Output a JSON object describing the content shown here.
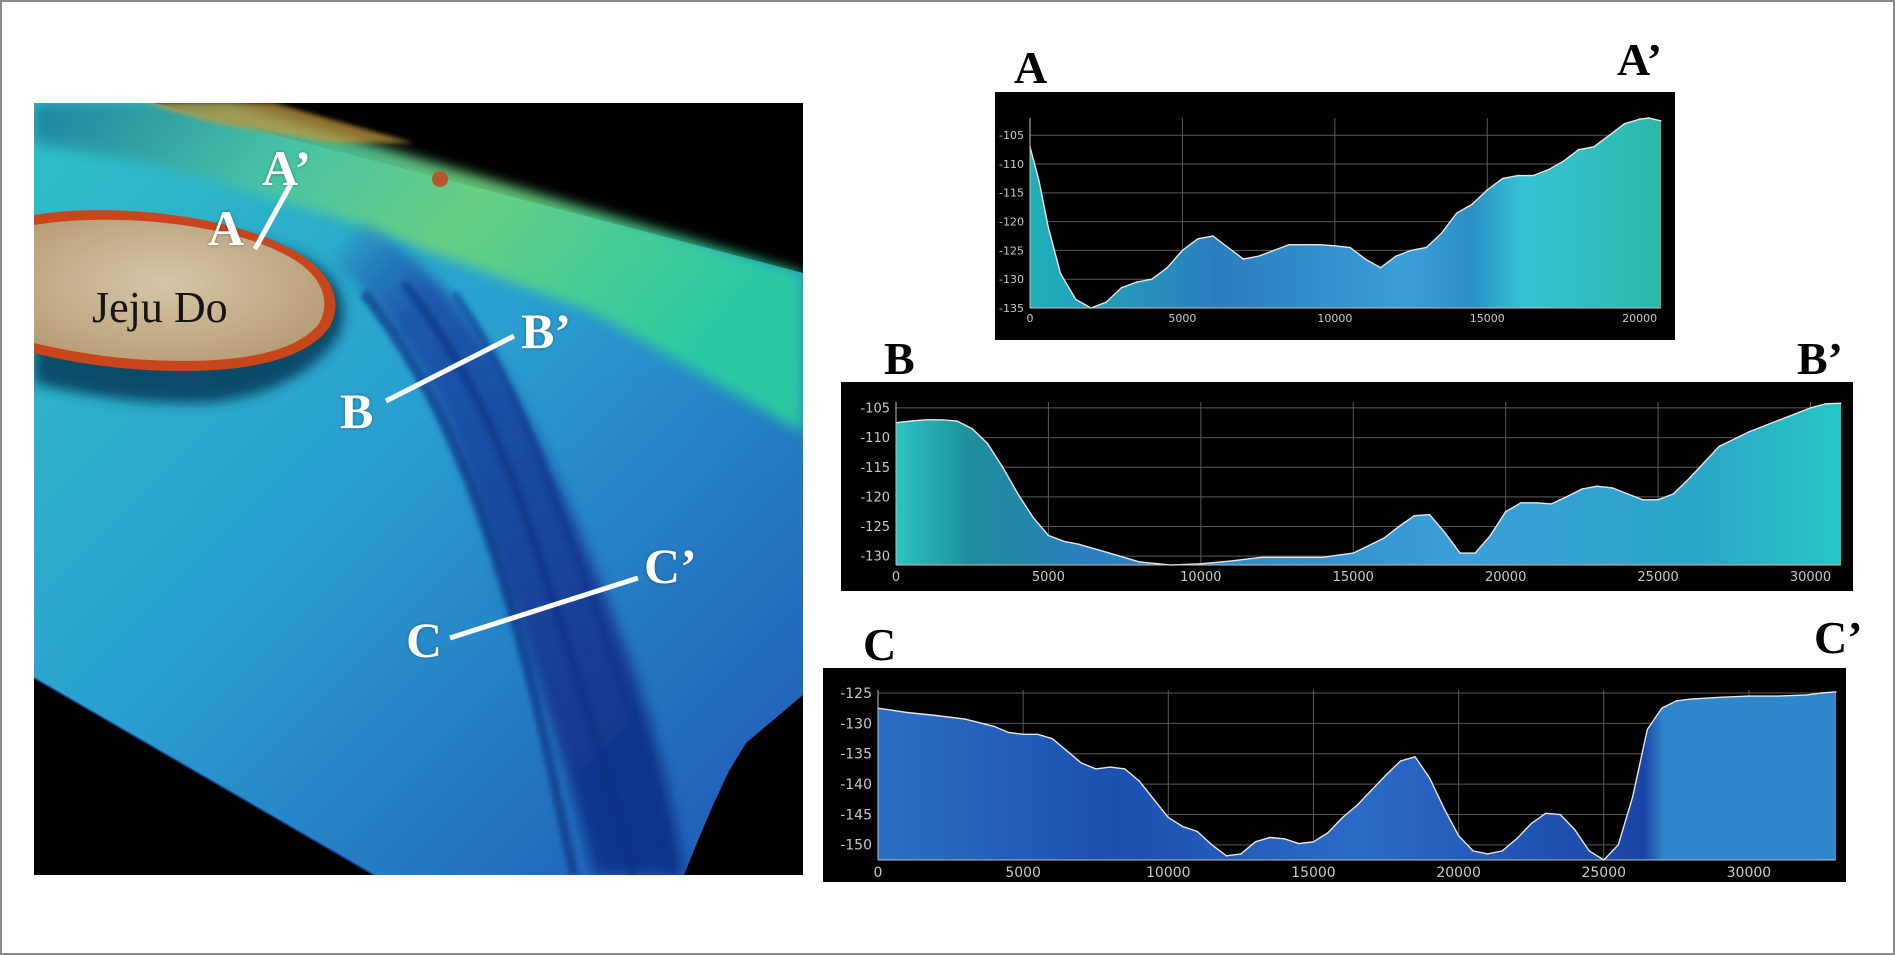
{
  "map": {
    "island_label": "Jeju Do",
    "colors": {
      "island": "#c9b493",
      "rim": "#d2521e",
      "shelf": "#2fc0c4",
      "trough": "#1e4fae",
      "deep": "#143a9a",
      "shallow_north": "#7bd25a",
      "background": "#000000"
    },
    "profile_lines": [
      {
        "name": "A",
        "start_label": "A",
        "end_label": "A’"
      },
      {
        "name": "B",
        "start_label": "B",
        "end_label": "B’"
      },
      {
        "name": "C",
        "start_label": "C",
        "end_label": "C’"
      }
    ]
  },
  "chart_data": [
    {
      "type": "area",
      "title_start": "A",
      "title_end": "A’",
      "xlabel": "",
      "ylabel": "",
      "xlim": [
        0,
        20700
      ],
      "ylim": [
        -135,
        -102
      ],
      "xticks": [
        0,
        5000,
        10000,
        15000,
        20000
      ],
      "yticks": [
        -105,
        -110,
        -115,
        -120,
        -125,
        -130,
        -135
      ],
      "fill_color": "#2a8fc4",
      "x": [
        0,
        300,
        600,
        1000,
        1500,
        2000,
        2500,
        3000,
        3500,
        4000,
        4500,
        5000,
        5500,
        6000,
        6500,
        7000,
        7500,
        8000,
        8500,
        9000,
        9500,
        10000,
        10500,
        11000,
        11500,
        12000,
        12500,
        13000,
        13500,
        14000,
        14500,
        15000,
        15500,
        16000,
        16500,
        17000,
        17500,
        18000,
        18500,
        19000,
        19500,
        20000,
        20300,
        20700
      ],
      "y": [
        -107,
        -113,
        -121,
        -129,
        -133.5,
        -135,
        -134,
        -131.5,
        -130.5,
        -130,
        -128,
        -125,
        -123,
        -122.5,
        -124.5,
        -126.5,
        -126,
        -125,
        -124,
        -124,
        -124,
        -124.2,
        -124.5,
        -126.5,
        -128,
        -126,
        -125,
        -124.5,
        -122,
        -118.5,
        -117,
        -114.5,
        -112.5,
        -112,
        -112,
        -111,
        -109.5,
        -107.5,
        -107,
        -105,
        -103,
        -102.2,
        -102,
        -102.5
      ]
    },
    {
      "type": "area",
      "title_start": "B",
      "title_end": "B’",
      "xlabel": "",
      "ylabel": "",
      "xlim": [
        0,
        31000
      ],
      "ylim": [
        -131.5,
        -104
      ],
      "xticks": [
        0,
        5000,
        10000,
        15000,
        20000,
        25000,
        30000
      ],
      "yticks": [
        -105,
        -110,
        -115,
        -120,
        -125,
        -130
      ],
      "fill_color": "#2a9bc4",
      "x": [
        0,
        500,
        1000,
        1500,
        2000,
        2500,
        3000,
        3500,
        4000,
        4500,
        5000,
        5500,
        6000,
        7000,
        8000,
        9000,
        10000,
        11000,
        12000,
        13000,
        14000,
        15000,
        16000,
        16500,
        17000,
        17500,
        18000,
        18500,
        19000,
        19500,
        20000,
        20500,
        21000,
        21500,
        22000,
        22500,
        23000,
        23500,
        24000,
        24500,
        25000,
        25500,
        26000,
        27000,
        28000,
        29000,
        30000,
        30500,
        31000
      ],
      "y": [
        -107.5,
        -107.2,
        -107,
        -107,
        -107.2,
        -108.5,
        -111,
        -115,
        -119.5,
        -123.5,
        -126.5,
        -127.5,
        -128,
        -129.5,
        -131,
        -131.5,
        -131.3,
        -130.8,
        -130.2,
        -130.2,
        -130.2,
        -129.5,
        -127,
        -125,
        -123.2,
        -123,
        -126,
        -129.5,
        -129.5,
        -126.5,
        -122.5,
        -121,
        -121,
        -121.2,
        -120,
        -118.7,
        -118.2,
        -118.5,
        -119.5,
        -120.5,
        -120.5,
        -119.5,
        -117,
        -111.5,
        -109,
        -107,
        -105,
        -104.3,
        -104.2
      ]
    },
    {
      "type": "area",
      "title_start": "C",
      "title_end": "C’",
      "xlabel": "",
      "ylabel": "",
      "xlim": [
        0,
        33000
      ],
      "ylim": [
        -152.5,
        -124.5
      ],
      "xticks": [
        0,
        5000,
        10000,
        15000,
        20000,
        25000,
        30000
      ],
      "yticks": [
        -125,
        -130,
        -135,
        -140,
        -145,
        -150
      ],
      "fill_color": "#1f5fb8",
      "x": [
        0,
        1000,
        2000,
        3000,
        4000,
        4500,
        5000,
        5500,
        6000,
        6500,
        7000,
        7500,
        8000,
        8500,
        9000,
        9500,
        10000,
        10500,
        11000,
        11500,
        12000,
        12500,
        13000,
        13500,
        14000,
        14500,
        15000,
        15500,
        16000,
        16500,
        17000,
        17500,
        18000,
        18500,
        19000,
        19500,
        20000,
        20500,
        21000,
        21500,
        22000,
        22500,
        23000,
        23500,
        24000,
        24500,
        25000,
        25500,
        26000,
        26500,
        27000,
        27500,
        28000,
        29000,
        30000,
        31000,
        32000,
        32500,
        33000
      ],
      "y": [
        -127.5,
        -128.2,
        -128.7,
        -129.3,
        -130.5,
        -131.5,
        -131.8,
        -131.8,
        -132.5,
        -134.5,
        -136.5,
        -137.5,
        -137.2,
        -137.5,
        -139.5,
        -142.5,
        -145.5,
        -147,
        -147.8,
        -150,
        -151.8,
        -151.5,
        -149.5,
        -148.8,
        -149,
        -149.8,
        -149.5,
        -148,
        -145.5,
        -143.5,
        -141,
        -138.5,
        -136.2,
        -135.5,
        -139,
        -144,
        -148.5,
        -151,
        -151.5,
        -151,
        -149,
        -146.5,
        -144.8,
        -145,
        -147.5,
        -151,
        -152.5,
        -150,
        -142,
        -131,
        -127.5,
        -126.3,
        -126,
        -125.7,
        -125.5,
        -125.5,
        -125.3,
        -125,
        -124.8
      ]
    }
  ]
}
